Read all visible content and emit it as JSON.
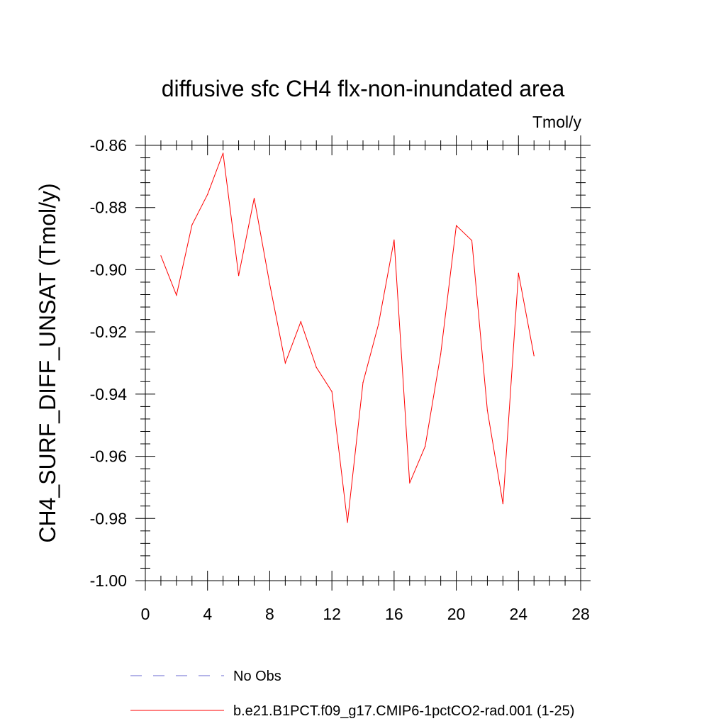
{
  "chart_data": {
    "type": "line",
    "title": "diffusive sfc CH4 flx-non-inundated area",
    "units_label": "Tmol/y",
    "ylabel": "CH4_SURF_DIFF_UNSAT  (Tmol/y)",
    "xlabel": "",
    "xlim": [
      0,
      28
    ],
    "ylim": [
      -1.0,
      -0.86
    ],
    "x_ticks": [
      0,
      4,
      8,
      12,
      16,
      20,
      24,
      28
    ],
    "x_tick_labels": [
      "0",
      "4",
      "8",
      "12",
      "16",
      "20",
      "24",
      "28"
    ],
    "y_ticks": [
      -1.0,
      -0.98,
      -0.96,
      -0.94,
      -0.92,
      -0.9,
      -0.88,
      -0.86
    ],
    "y_tick_labels": [
      "-1.00",
      "-0.98",
      "-0.96",
      "-0.94",
      "-0.92",
      "-0.90",
      "-0.88",
      "-0.86"
    ],
    "grid": false,
    "legend_position": "bottom",
    "series": [
      {
        "name": "b.e21.B1PCT.f09_g17.CMIP6-1pctCO2-rad.001 (1-25)",
        "color": "#ff0000",
        "dash": "solid",
        "x": [
          1,
          2,
          3,
          4,
          5,
          6,
          7,
          8,
          9,
          10,
          11,
          12,
          13,
          14,
          15,
          16,
          17,
          18,
          19,
          20,
          21,
          22,
          23,
          24,
          25
        ],
        "values": [
          -0.8955,
          -0.9082,
          -0.8856,
          -0.8758,
          -0.8625,
          -0.9019,
          -0.877,
          -0.9046,
          -0.93,
          -0.9167,
          -0.9314,
          -0.9392,
          -0.9813,
          -0.9363,
          -0.9175,
          -0.8904,
          -0.9686,
          -0.9568,
          -0.9271,
          -0.8858,
          -0.8906,
          -0.9452,
          -0.9753,
          -0.9011,
          -0.9277
        ]
      }
    ],
    "legend": [
      {
        "label": "No Obs",
        "color": "#6a6ad0",
        "dash": "dashed"
      },
      {
        "label": "b.e21.B1PCT.f09_g17.CMIP6-1pctCO2-rad.001 (1-25)",
        "color": "#ff0000",
        "dash": "solid"
      }
    ]
  }
}
